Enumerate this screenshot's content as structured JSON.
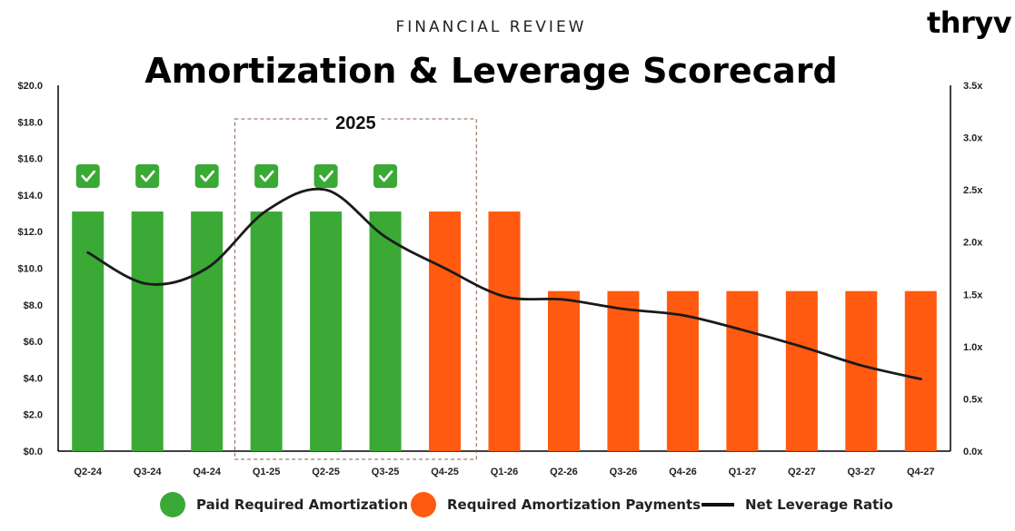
{
  "header": {
    "eyebrow": "FINANCIAL REVIEW",
    "title": "Amortization & Leverage Scorecard",
    "logo": "thryv"
  },
  "colors": {
    "paid": "#3aa935",
    "required": "#ff5a10",
    "line": "#1a1a1a",
    "check_bg": "#3aa935"
  },
  "chart_data": {
    "type": "bar",
    "categories": [
      "Q2-24",
      "Q3-24",
      "Q4-24",
      "Q1-25",
      "Q2-25",
      "Q3-25",
      "Q4-25",
      "Q1-26",
      "Q2-26",
      "Q3-26",
      "Q4-26",
      "Q1-27",
      "Q2-27",
      "Q3-27",
      "Q4-27"
    ],
    "series": [
      {
        "name": "Paid Required Amortization",
        "axis": "left",
        "kind": "bar",
        "values": [
          13.1,
          13.1,
          13.1,
          13.1,
          13.1,
          13.1,
          null,
          null,
          null,
          null,
          null,
          null,
          null,
          null,
          null
        ]
      },
      {
        "name": "Required Amortization Payments",
        "axis": "left",
        "kind": "bar",
        "values": [
          null,
          null,
          null,
          null,
          null,
          null,
          13.1,
          13.1,
          8.75,
          8.75,
          8.75,
          8.75,
          8.75,
          8.75,
          8.75
        ]
      },
      {
        "name": "Net Leverage Ratio",
        "axis": "right",
        "kind": "line",
        "values": [
          1.9,
          1.6,
          1.75,
          2.3,
          2.5,
          2.05,
          1.75,
          1.48,
          1.45,
          1.36,
          1.3,
          1.16,
          1.0,
          0.82,
          0.69
        ]
      }
    ],
    "checkmarks": [
      true,
      true,
      true,
      true,
      true,
      true,
      false,
      false,
      false,
      false,
      false,
      false,
      false,
      false,
      false
    ],
    "highlight": {
      "label": "2025",
      "from": "Q1-25",
      "to": "Q4-25"
    },
    "ylim": [
      0,
      20
    ],
    "y2lim": [
      0,
      3.5
    ],
    "yticks": [
      "$0.0",
      "$2.0",
      "$4.0",
      "$6.0",
      "$8.0",
      "$10.0",
      "$12.0",
      "$14.0",
      "$16.0",
      "$18.0",
      "$20.0"
    ],
    "y2ticks": [
      "0.0x",
      "0.5x",
      "1.0x",
      "1.5x",
      "2.0x",
      "2.5x",
      "3.0x",
      "3.5x"
    ],
    "grid": false,
    "legend_position": "bottom"
  },
  "legend": {
    "paid": "Paid Required Amortization",
    "required": "Required Amortization Payments",
    "line": "Net Leverage Ratio"
  }
}
